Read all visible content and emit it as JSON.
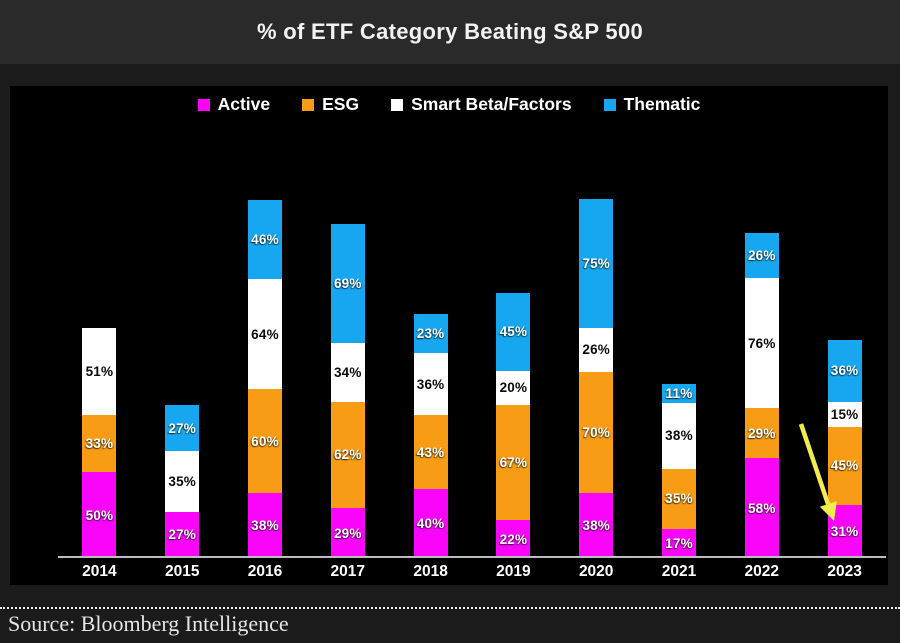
{
  "title": "% of ETF Category Beating S&P 500",
  "footer": {
    "source": "Source: Bloomberg Intelligence"
  },
  "colors": {
    "active": "#FA05FA",
    "esg": "#F79C14",
    "smart_beta": "#FFFFFF",
    "thematic": "#17A7F0",
    "arrow": "#F2EC4D",
    "axis": "#BDBDBD",
    "panel_bg": "#000000",
    "page_bg": "#1B1B1B",
    "titlebar_bg": "#2A2A2A"
  },
  "chart_data": {
    "type": "bar",
    "stacked": true,
    "title": "% of ETF Category Beating S&P 500",
    "categories": [
      "2014",
      "2015",
      "2016",
      "2017",
      "2018",
      "2019",
      "2020",
      "2021",
      "2022",
      "2023"
    ],
    "series": [
      {
        "name": "Active",
        "color_key": "active",
        "label_color": "#FFFFFF",
        "values": [
          50,
          27,
          38,
          29,
          40,
          22,
          38,
          17,
          58,
          31
        ]
      },
      {
        "name": "ESG",
        "color_key": "esg",
        "label_color": "#FFFFFF",
        "values": [
          33,
          null,
          60,
          62,
          43,
          67,
          70,
          35,
          29,
          45
        ]
      },
      {
        "name": "Smart Beta/Factors",
        "color_key": "smart_beta",
        "label_color": "#0A0A0A",
        "values": [
          51,
          35,
          64,
          34,
          36,
          20,
          26,
          38,
          76,
          15
        ]
      },
      {
        "name": "Thematic",
        "color_key": "thematic",
        "label_color": "#FFFFFF",
        "values": [
          null,
          27,
          46,
          69,
          23,
          45,
          75,
          11,
          26,
          36
        ]
      }
    ],
    "value_suffix": "%",
    "legend_position": "top",
    "grid": false,
    "y_axis_visible": false,
    "annotation": {
      "type": "arrow",
      "target": "2023 Active segment",
      "target_value": "31%",
      "color_key": "arrow"
    }
  }
}
